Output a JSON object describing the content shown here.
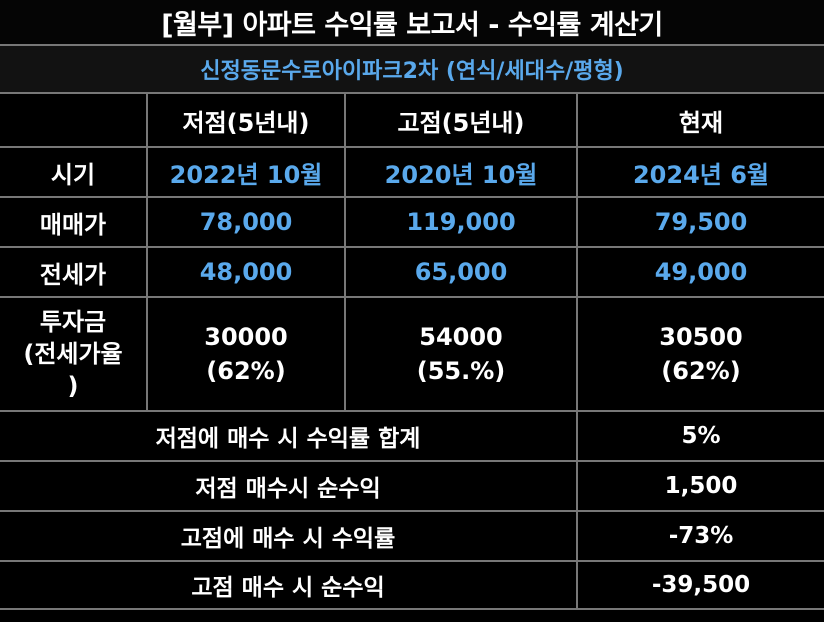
{
  "title": "[월부] 아파트 수익률 보고서 - 수익률 계산기",
  "subtitle": "신정동문수로아이파크2차 (연식/세대수/평형)",
  "columns": [
    "저점(5년내)",
    "고점(5년내)",
    "현재"
  ],
  "rows": [
    {
      "label": "시기",
      "values": [
        "2022년 10월",
        "2020년 10월",
        "2024년 6월"
      ]
    },
    {
      "label": "매매가",
      "values": [
        "78,000",
        "119,000",
        "79,500"
      ]
    },
    {
      "label": "전세가",
      "values": [
        "48,000",
        "65,000",
        "49,000"
      ]
    }
  ],
  "investment": {
    "label_line1": "투자금",
    "label_line2": "(전세가율",
    "label_line3": ")",
    "cells": [
      {
        "amount": "30000",
        "ratio": "(62%)"
      },
      {
        "amount": "54000",
        "ratio": "(55.%)"
      },
      {
        "amount": "30500",
        "ratio": "(62%)"
      }
    ]
  },
  "summary": [
    {
      "label": "저점에 매수 시 수익률 합계",
      "value": "5%"
    },
    {
      "label": "저점 매수시 순수익",
      "value": "1,500"
    },
    {
      "label": "고점에 매수 시 수익률",
      "value": "-73%"
    },
    {
      "label": "고점 매수 시 순수익",
      "value": "-39,500"
    }
  ],
  "colors": {
    "accent": "#5aa9ec",
    "background": "#000000",
    "grid": "#777777"
  }
}
